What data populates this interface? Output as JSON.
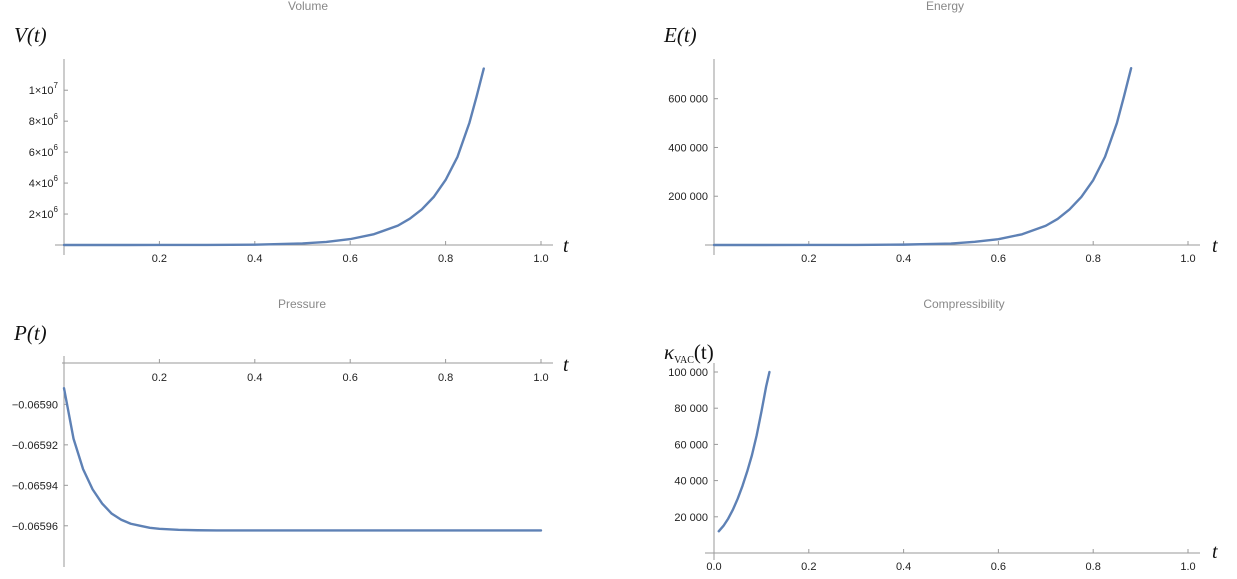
{
  "colors": {
    "series": "#5e81b5",
    "axis": "#9a9a9a",
    "title": "#888888"
  },
  "chart_data": [
    {
      "type": "line",
      "title": "Volume",
      "ylabel": "V(t)",
      "xlabel": "t",
      "x_ticks": [
        "0.2",
        "0.4",
        "0.6",
        "0.8",
        "1.0"
      ],
      "y_ticks": [
        {
          "value": 2000000,
          "mantissa": "2",
          "exponent": "6"
        },
        {
          "value": 4000000,
          "mantissa": "4",
          "exponent": "6"
        },
        {
          "value": 6000000,
          "mantissa": "6",
          "exponent": "6"
        },
        {
          "value": 8000000,
          "mantissa": "8",
          "exponent": "6"
        },
        {
          "value": 10000000,
          "mantissa": "1",
          "exponent": "7"
        }
      ],
      "xlim": [
        0,
        1.0
      ],
      "ylim": [
        0,
        11500000
      ],
      "series": [
        {
          "x": [
            0.0,
            0.1,
            0.2,
            0.3,
            0.4,
            0.5,
            0.55,
            0.6,
            0.65,
            0.7,
            0.725,
            0.75,
            0.775,
            0.8,
            0.825,
            0.85,
            0.865,
            0.88
          ],
          "y": [
            1,
            80,
            1000,
            5000,
            20000,
            100000,
            200000,
            380000,
            700000,
            1250000,
            1700000,
            2300000,
            3100000,
            4200000,
            5700000,
            7900000,
            9600000,
            11400000
          ]
        }
      ]
    },
    {
      "type": "line",
      "title": "Energy",
      "ylabel": "E(t)",
      "xlabel": "t",
      "x_ticks": [
        "0.2",
        "0.4",
        "0.6",
        "0.8",
        "1.0"
      ],
      "y_ticks": [
        {
          "value": 200000,
          "label": "200 000"
        },
        {
          "value": 400000,
          "label": "400 000"
        },
        {
          "value": 600000,
          "label": "600 000"
        }
      ],
      "xlim": [
        0,
        1.0
      ],
      "ylim": [
        0,
        730000
      ],
      "series": [
        {
          "x": [
            0.0,
            0.1,
            0.2,
            0.3,
            0.4,
            0.5,
            0.55,
            0.6,
            0.65,
            0.7,
            0.725,
            0.75,
            0.775,
            0.8,
            0.825,
            0.85,
            0.865,
            0.88
          ],
          "y": [
            0,
            10,
            100,
            400,
            1500,
            6000,
            13000,
            24000,
            44000,
            79000,
            107000,
            146000,
            197000,
            266000,
            362000,
            500000,
            610000,
            725000
          ]
        }
      ]
    },
    {
      "type": "line",
      "title": "Pressure",
      "ylabel": "P(t)",
      "xlabel": "t",
      "x_ticks": [
        "0.2",
        "0.4",
        "0.6",
        "0.8",
        "1.0"
      ],
      "y_ticks": [
        {
          "value": -0.0659,
          "label": "−0.06590"
        },
        {
          "value": -0.06592,
          "label": "−0.06592"
        },
        {
          "value": -0.06594,
          "label": "−0.06594"
        },
        {
          "value": -0.06596,
          "label": "−0.06596"
        }
      ],
      "xlim": [
        0,
        1.0
      ],
      "ylim": [
        -0.065969,
        -0.065884
      ],
      "series": [
        {
          "x": [
            0.0,
            0.02,
            0.04,
            0.06,
            0.08,
            0.1,
            0.12,
            0.14,
            0.16,
            0.18,
            0.2,
            0.24,
            0.28,
            0.32,
            0.4,
            0.5,
            0.6,
            0.7,
            0.8,
            0.9,
            1.0
          ],
          "y": [
            -0.065892,
            -0.065917,
            -0.065932,
            -0.065942,
            -0.065949,
            -0.065954,
            -0.065957,
            -0.065959,
            -0.06596,
            -0.065961,
            -0.0659615,
            -0.065962,
            -0.0659622,
            -0.0659623,
            -0.0659623,
            -0.0659623,
            -0.0659623,
            -0.0659623,
            -0.0659623,
            -0.0659623,
            -0.0659623
          ]
        }
      ]
    },
    {
      "type": "line",
      "title": "Compressibility",
      "ylabel": "κVAC(t)",
      "ylabel_parts": [
        "κ",
        "VAC",
        "(t)"
      ],
      "xlabel": "t",
      "x_ticks": [
        "0.0",
        "0.2",
        "0.4",
        "0.6",
        "0.8",
        "1.0"
      ],
      "y_ticks": [
        {
          "value": 20000,
          "label": "20 000"
        },
        {
          "value": 40000,
          "label": "40 000"
        },
        {
          "value": 60000,
          "label": "60 000"
        },
        {
          "value": 80000,
          "label": "80 000"
        },
        {
          "value": 100000,
          "label": "100 000"
        }
      ],
      "xlim": [
        0,
        1.0
      ],
      "ylim": [
        0,
        100000
      ],
      "series": [
        {
          "x": [
            0.01,
            0.02,
            0.03,
            0.04,
            0.05,
            0.06,
            0.07,
            0.08,
            0.09,
            0.1,
            0.11,
            0.117
          ],
          "y": [
            12000,
            15000,
            19000,
            24000,
            30000,
            37000,
            45000,
            54000,
            65000,
            78000,
            92000,
            100000
          ]
        }
      ]
    }
  ]
}
